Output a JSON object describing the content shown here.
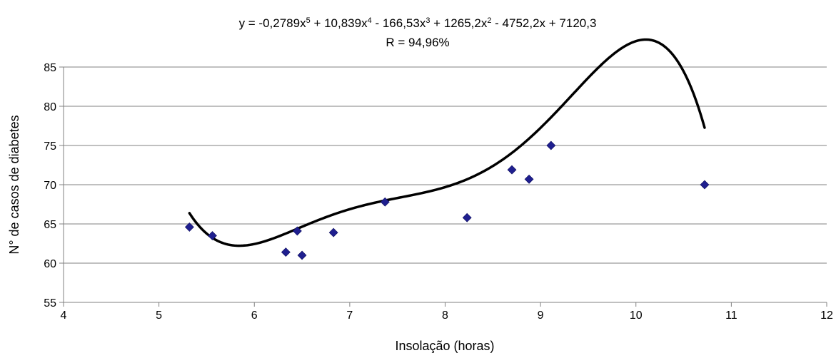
{
  "chart_data": {
    "type": "scatter",
    "title_line1_parts": {
      "p1": "y = -0,2789x",
      "e1": "5",
      "p2": " + 10,839x",
      "e2": "4",
      "p3": " - 166,53x",
      "e3": "3",
      "p4": " + 1265,2x",
      "e4": "2",
      "p5": " - 4752,2x + 7120,3"
    },
    "title_line2": "R = 94,96%",
    "xlabel": "Insolação (horas)",
    "ylabel": "N° de casos de diabetes",
    "xlim": [
      4,
      12
    ],
    "ylim": [
      55,
      85
    ],
    "x_ticks": [
      4,
      5,
      6,
      7,
      8,
      9,
      10,
      11,
      12
    ],
    "y_ticks": [
      55,
      60,
      65,
      70,
      75,
      80,
      85
    ],
    "grid": "horizontal",
    "marker": "diamond",
    "marker_color": "#1f1f8f",
    "series": [
      {
        "x": [
          5.32,
          5.56,
          6.33,
          6.45,
          6.5,
          6.83,
          7.37,
          8.23,
          8.7,
          8.88,
          9.11,
          10.72
        ],
        "y": [
          64.6,
          63.5,
          61.4,
          64.1,
          61.0,
          63.9,
          67.8,
          65.8,
          71.9,
          70.7,
          75.0,
          70.0
        ]
      }
    ],
    "trendline": {
      "type": "polynomial",
      "order": 5,
      "coefficients": [
        -0.2789,
        10.839,
        -166.53,
        1265.2,
        -4752.2,
        7120.3
      ],
      "x_range": [
        5.32,
        10.72
      ],
      "color": "#000000"
    }
  }
}
